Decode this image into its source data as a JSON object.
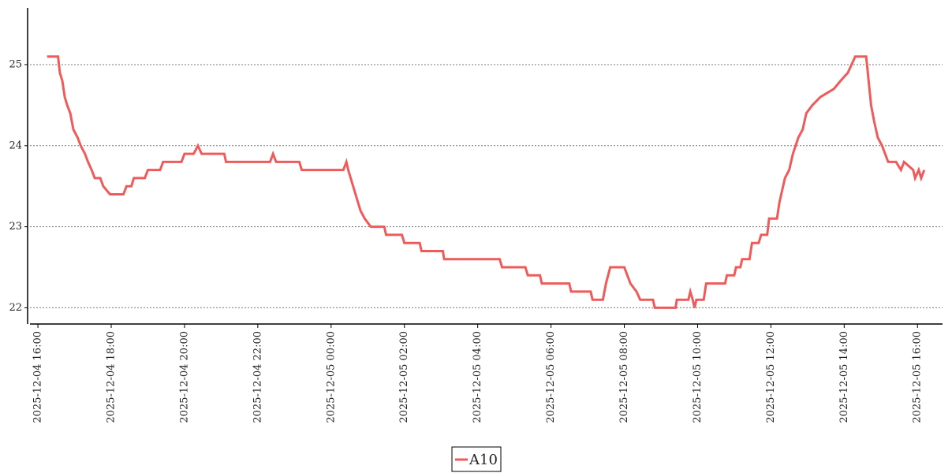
{
  "chart_data": {
    "type": "line",
    "x": [
      "2025-12-04 16:15",
      "2025-12-04 16:33",
      "2025-12-04 16:36",
      "2025-12-04 16:40",
      "2025-12-04 16:44",
      "2025-12-04 16:48",
      "2025-12-04 16:53",
      "2025-12-04 16:58",
      "2025-12-04 17:05",
      "2025-12-04 17:10",
      "2025-12-04 17:17",
      "2025-12-04 17:22",
      "2025-12-04 17:28",
      "2025-12-04 17:33",
      "2025-12-04 17:42",
      "2025-12-04 17:47",
      "2025-12-04 17:58",
      "2025-12-04 18:20",
      "2025-12-04 18:25",
      "2025-12-04 18:33",
      "2025-12-04 18:37",
      "2025-12-04 18:55",
      "2025-12-04 19:00",
      "2025-12-04 19:20",
      "2025-12-04 19:25",
      "2025-12-04 19:55",
      "2025-12-04 20:00",
      "2025-12-04 20:15",
      "2025-12-04 20:22",
      "2025-12-04 20:28",
      "2025-12-04 21:05",
      "2025-12-04 21:08",
      "2025-12-04 22:20",
      "2025-12-04 22:25",
      "2025-12-04 22:30",
      "2025-12-04 23:08",
      "2025-12-04 23:12",
      "2025-12-05 00:20",
      "2025-12-05 00:25",
      "2025-12-05 00:28",
      "2025-12-05 00:32",
      "2025-12-05 00:36",
      "2025-12-05 00:40",
      "2025-12-05 00:44",
      "2025-12-05 00:48",
      "2025-12-05 00:55",
      "2025-12-05 01:05",
      "2025-12-05 01:27",
      "2025-12-05 01:30",
      "2025-12-05 01:56",
      "2025-12-05 02:00",
      "2025-12-05 02:25",
      "2025-12-05 02:28",
      "2025-12-05 03:03",
      "2025-12-05 03:05",
      "2025-12-05 04:36",
      "2025-12-05 04:40",
      "2025-12-05 05:18",
      "2025-12-05 05:22",
      "2025-12-05 05:42",
      "2025-12-05 05:45",
      "2025-12-05 06:30",
      "2025-12-05 06:33",
      "2025-12-05 07:05",
      "2025-12-05 07:08",
      "2025-12-05 07:25",
      "2025-12-05 07:30",
      "2025-12-05 07:37",
      "2025-12-05 08:00",
      "2025-12-05 08:05",
      "2025-12-05 08:10",
      "2025-12-05 08:20",
      "2025-12-05 08:26",
      "2025-12-05 08:47",
      "2025-12-05 08:50",
      "2025-12-05 09:24",
      "2025-12-05 09:26",
      "2025-12-05 09:45",
      "2025-12-05 09:48",
      "2025-12-05 09:52",
      "2025-12-05 09:55",
      "2025-12-05 09:58",
      "2025-12-05 10:10",
      "2025-12-05 10:14",
      "2025-12-05 10:45",
      "2025-12-05 10:48",
      "2025-12-05 11:00",
      "2025-12-05 11:03",
      "2025-12-05 11:10",
      "2025-12-05 11:13",
      "2025-12-05 11:25",
      "2025-12-05 11:29",
      "2025-12-05 11:40",
      "2025-12-05 11:44",
      "2025-12-05 11:54",
      "2025-12-05 11:57",
      "2025-12-05 12:10",
      "2025-12-05 12:14",
      "2025-12-05 12:23",
      "2025-12-05 12:30",
      "2025-12-05 12:36",
      "2025-12-05 12:45",
      "2025-12-05 12:52",
      "2025-12-05 12:58",
      "2025-12-05 13:08",
      "2025-12-05 13:21",
      "2025-12-05 13:43",
      "2025-12-05 13:54",
      "2025-12-05 14:06",
      "2025-12-05 14:18",
      "2025-12-05 14:36",
      "2025-12-05 14:40",
      "2025-12-05 14:44",
      "2025-12-05 14:49",
      "2025-12-05 14:55",
      "2025-12-05 15:02",
      "2025-12-05 15:12",
      "2025-12-05 15:25",
      "2025-12-05 15:33",
      "2025-12-05 15:38",
      "2025-12-05 15:53",
      "2025-12-05 15:56",
      "2025-12-05 16:02",
      "2025-12-05 16:06",
      "2025-12-05 16:11"
    ],
    "series": [
      {
        "name": "A10",
        "color": "#ef5a5a",
        "values": [
          25.1,
          25.1,
          24.9,
          24.8,
          24.6,
          24.5,
          24.4,
          24.2,
          24.1,
          24.0,
          23.9,
          23.8,
          23.7,
          23.6,
          23.6,
          23.5,
          23.4,
          23.4,
          23.5,
          23.5,
          23.6,
          23.6,
          23.7,
          23.7,
          23.8,
          23.8,
          23.9,
          23.9,
          24.0,
          23.9,
          23.9,
          23.8,
          23.8,
          23.9,
          23.8,
          23.8,
          23.7,
          23.7,
          23.8,
          23.7,
          23.6,
          23.5,
          23.4,
          23.3,
          23.2,
          23.1,
          23.0,
          23.0,
          22.9,
          22.9,
          22.8,
          22.8,
          22.7,
          22.7,
          22.6,
          22.6,
          22.5,
          22.5,
          22.4,
          22.4,
          22.3,
          22.3,
          22.2,
          22.2,
          22.1,
          22.1,
          22.3,
          22.5,
          22.5,
          22.4,
          22.3,
          22.2,
          22.1,
          22.1,
          22.0,
          22.0,
          22.1,
          22.1,
          22.2,
          22.1,
          22.0,
          22.1,
          22.1,
          22.3,
          22.3,
          22.4,
          22.4,
          22.5,
          22.5,
          22.6,
          22.6,
          22.8,
          22.8,
          22.9,
          22.9,
          23.1,
          23.1,
          23.3,
          23.6,
          23.7,
          23.9,
          24.1,
          24.2,
          24.4,
          24.5,
          24.6,
          24.7,
          24.8,
          24.9,
          25.1,
          25.1,
          24.8,
          24.5,
          24.3,
          24.1,
          24.0,
          23.8,
          23.8,
          23.7,
          23.8,
          23.7,
          23.6,
          23.7,
          23.6,
          23.7
        ]
      }
    ],
    "xlim": [
      "2025-12-04 15:47",
      "2025-12-05 16:41"
    ],
    "xticks": [
      "2025-12-04 16:00",
      "2025-12-04 18:00",
      "2025-12-04 20:00",
      "2025-12-04 22:00",
      "2025-12-05 00:00",
      "2025-12-05 02:00",
      "2025-12-05 04:00",
      "2025-12-05 06:00",
      "2025-12-05 08:00",
      "2025-12-05 10:00",
      "2025-12-05 12:00",
      "2025-12-05 14:00",
      "2025-12-05 16:00"
    ],
    "ylim": [
      21.8,
      25.7
    ],
    "yticks": [
      22,
      23,
      24,
      25
    ],
    "grid": true,
    "legend": "bottom"
  }
}
